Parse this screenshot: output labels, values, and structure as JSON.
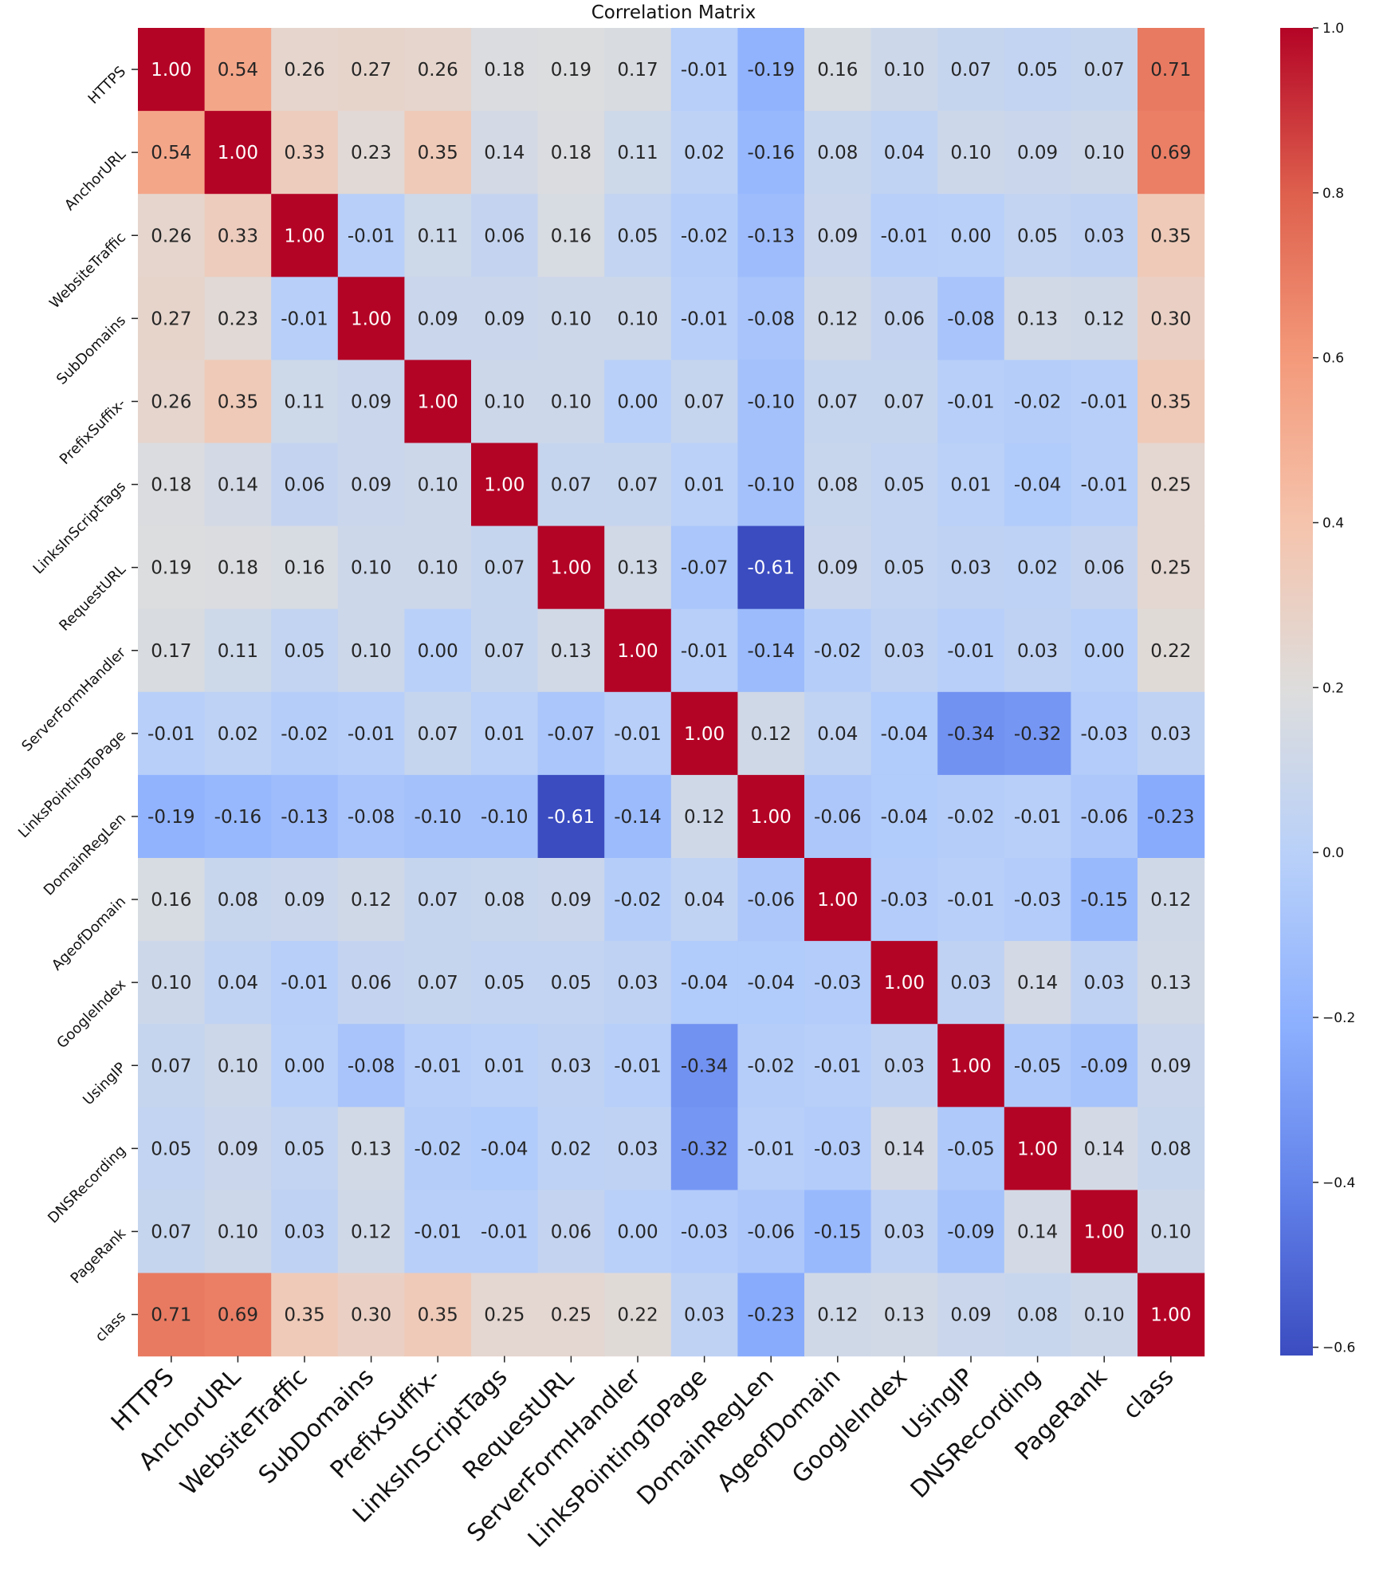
{
  "chart_data": {
    "type": "heatmap",
    "title": "Correlation Matrix",
    "labels": [
      "HTTPS",
      "AnchorURL",
      "WebsiteTraffic",
      "SubDomains",
      "PrefixSuffix-",
      "LinksInScriptTags",
      "RequestURL",
      "ServerFormHandler",
      "LinksPointingToPage",
      "DomainRegLen",
      "AgeofDomain",
      "GoogleIndex",
      "UsingIP",
      "DNSRecording",
      "PageRank",
      "class"
    ],
    "cell_labels": [
      [
        "1.00",
        "0.54",
        "0.26",
        "0.27",
        "0.26",
        "0.18",
        "0.19",
        "0.17",
        "-0.01",
        "-0.19",
        "0.16",
        "0.10",
        "0.07",
        "0.05",
        "0.07",
        "0.71"
      ],
      [
        "0.54",
        "1.00",
        "0.33",
        "0.23",
        "0.35",
        "0.14",
        "0.18",
        "0.11",
        "0.02",
        "-0.16",
        "0.08",
        "0.04",
        "0.10",
        "0.09",
        "0.10",
        "0.69"
      ],
      [
        "0.26",
        "0.33",
        "1.00",
        "-0.01",
        "0.11",
        "0.06",
        "0.16",
        "0.05",
        "-0.02",
        "-0.13",
        "0.09",
        "-0.01",
        "0.00",
        "0.05",
        "0.03",
        "0.35"
      ],
      [
        "0.27",
        "0.23",
        "-0.01",
        "1.00",
        "0.09",
        "0.09",
        "0.10",
        "0.10",
        "-0.01",
        "-0.08",
        "0.12",
        "0.06",
        "-0.08",
        "0.13",
        "0.12",
        "0.30"
      ],
      [
        "0.26",
        "0.35",
        "0.11",
        "0.09",
        "1.00",
        "0.10",
        "0.10",
        "0.00",
        "0.07",
        "-0.10",
        "0.07",
        "0.07",
        "-0.01",
        "-0.02",
        "-0.01",
        "0.35"
      ],
      [
        "0.18",
        "0.14",
        "0.06",
        "0.09",
        "0.10",
        "1.00",
        "0.07",
        "0.07",
        "0.01",
        "-0.10",
        "0.08",
        "0.05",
        "0.01",
        "-0.04",
        "-0.01",
        "0.25"
      ],
      [
        "0.19",
        "0.18",
        "0.16",
        "0.10",
        "0.10",
        "0.07",
        "1.00",
        "0.13",
        "-0.07",
        "-0.61",
        "0.09",
        "0.05",
        "0.03",
        "0.02",
        "0.06",
        "0.25"
      ],
      [
        "0.17",
        "0.11",
        "0.05",
        "0.10",
        "0.00",
        "0.07",
        "0.13",
        "1.00",
        "-0.01",
        "-0.14",
        "-0.02",
        "0.03",
        "-0.01",
        "0.03",
        "0.00",
        "0.22"
      ],
      [
        "-0.01",
        "0.02",
        "-0.02",
        "-0.01",
        "0.07",
        "0.01",
        "-0.07",
        "-0.01",
        "1.00",
        "0.12",
        "0.04",
        "-0.04",
        "-0.34",
        "-0.32",
        "-0.03",
        "0.03"
      ],
      [
        "-0.19",
        "-0.16",
        "-0.13",
        "-0.08",
        "-0.10",
        "-0.10",
        "-0.61",
        "-0.14",
        "0.12",
        "1.00",
        "-0.06",
        "-0.04",
        "-0.02",
        "-0.01",
        "-0.06",
        "-0.23"
      ],
      [
        "0.16",
        "0.08",
        "0.09",
        "0.12",
        "0.07",
        "0.08",
        "0.09",
        "-0.02",
        "0.04",
        "-0.06",
        "1.00",
        "-0.03",
        "-0.01",
        "-0.03",
        "-0.15",
        "0.12"
      ],
      [
        "0.10",
        "0.04",
        "-0.01",
        "0.06",
        "0.07",
        "0.05",
        "0.05",
        "0.03",
        "-0.04",
        "-0.04",
        "-0.03",
        "1.00",
        "0.03",
        "0.14",
        "0.03",
        "0.13"
      ],
      [
        "0.07",
        "0.10",
        "0.00",
        "-0.08",
        "-0.01",
        "0.01",
        "0.03",
        "-0.01",
        "-0.34",
        "-0.02",
        "-0.01",
        "0.03",
        "1.00",
        "-0.05",
        "-0.09",
        "0.09"
      ],
      [
        "0.05",
        "0.09",
        "0.05",
        "0.13",
        "-0.02",
        "-0.04",
        "0.02",
        "0.03",
        "-0.32",
        "-0.01",
        "-0.03",
        "0.14",
        "-0.05",
        "1.00",
        "0.14",
        "0.08"
      ],
      [
        "0.07",
        "0.10",
        "0.03",
        "0.12",
        "-0.01",
        "-0.01",
        "0.06",
        "0.00",
        "-0.03",
        "-0.06",
        "-0.15",
        "0.03",
        "-0.09",
        "0.14",
        "1.00",
        "0.10"
      ],
      [
        "0.71",
        "0.69",
        "0.35",
        "0.30",
        "0.35",
        "0.25",
        "0.25",
        "0.22",
        "0.03",
        "-0.23",
        "0.12",
        "0.13",
        "0.09",
        "0.08",
        "0.10",
        "1.00"
      ]
    ],
    "colorbar": {
      "colormap": "coolwarm",
      "vmin": -0.61,
      "vmax": 1.0,
      "ticks": [
        1.0,
        0.8,
        0.6,
        0.4,
        0.2,
        0.0,
        -0.2,
        -0.4,
        -0.6
      ],
      "tick_labels": [
        "1.0",
        "0.8",
        "0.6",
        "0.4",
        "0.2",
        "0.0",
        "−0.2",
        "−0.4",
        "−0.6"
      ]
    }
  }
}
